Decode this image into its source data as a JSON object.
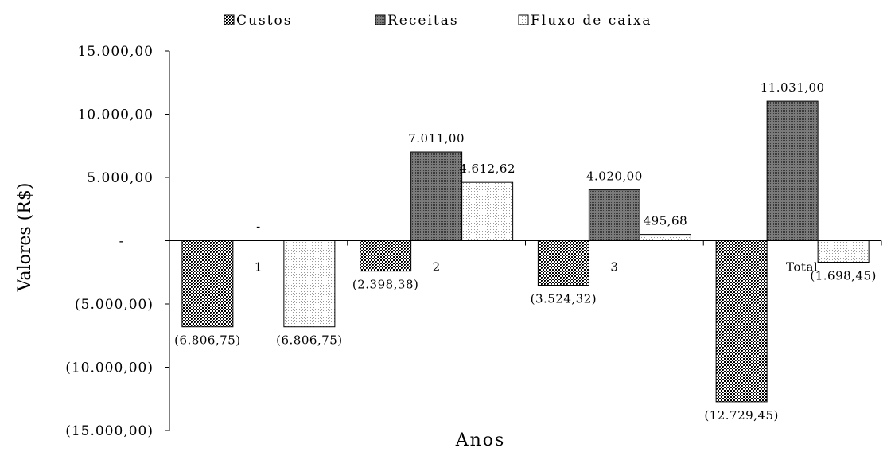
{
  "chart_data": {
    "type": "bar",
    "title": "",
    "xlabel": "Anos",
    "ylabel": "Valores (R$)",
    "categories": [
      "1",
      "2",
      "3",
      "Total"
    ],
    "ylim": [
      -15000,
      15000
    ],
    "yticks": [
      {
        "value": 15000,
        "label": "15.000,00"
      },
      {
        "value": 10000,
        "label": "10.000,00"
      },
      {
        "value": 5000,
        "label": "5.000,00"
      },
      {
        "value": 0,
        "label": "-"
      },
      {
        "value": -5000,
        "label": "(5.000,00)"
      },
      {
        "value": -10000,
        "label": "(10.000,00)"
      },
      {
        "value": -15000,
        "label": "(15.000,00)"
      }
    ],
    "legend_position": "top",
    "grid": false,
    "series": [
      {
        "name": "Custos",
        "pattern": "crosshatch",
        "values": [
          -6806.75,
          -2398.38,
          -3524.32,
          -12729.45
        ],
        "labels": [
          "(6.806,75)",
          "(2.398,38)",
          "(3.524,32)",
          "(12.729,45)"
        ]
      },
      {
        "name": "Receitas",
        "pattern": "dark-dots",
        "values": [
          0,
          7011.0,
          4020.0,
          11031.0
        ],
        "labels": [
          "-",
          "7.011,00",
          "4.020,00",
          "11.031,00"
        ]
      },
      {
        "name": "Fluxo de caixa",
        "pattern": "light-dots",
        "values": [
          -6806.75,
          4612.62,
          495.68,
          -1698.45
        ],
        "labels": [
          "(6.806,75)",
          "4.612,62",
          "495,68",
          "(1.698,45)"
        ]
      }
    ]
  }
}
